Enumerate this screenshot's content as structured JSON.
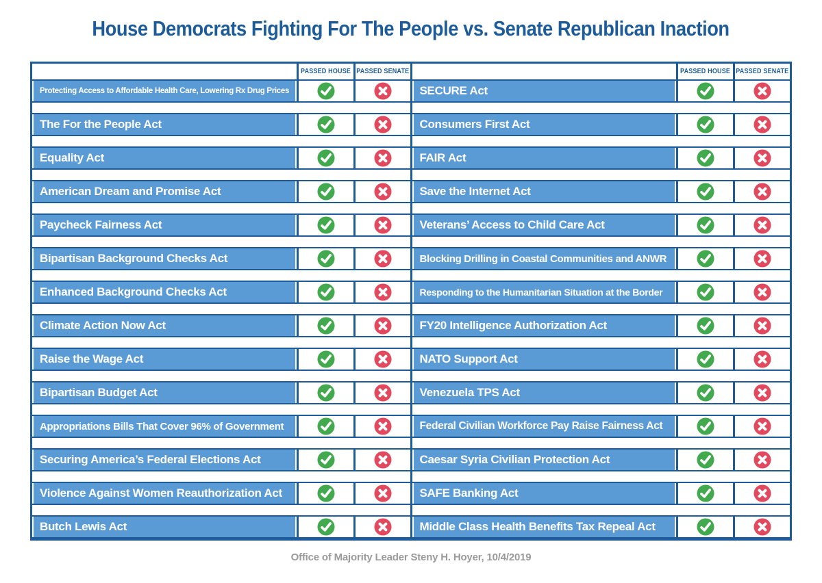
{
  "title": "House Democrats Fighting For The People vs. Senate Republican Inaction",
  "footer": "Office of Majority Leader Steny H. Hoyer, 10/4/2019",
  "columns": {
    "passed_house": "PASSED HOUSE",
    "passed_senate": "PASSED SENATE"
  },
  "colors": {
    "accent_blue": "#1D5C99",
    "bar_blue": "#5B9BD5",
    "pass_green": "#42A94E",
    "fail_red": "#E2495E",
    "footer_gray": "#9A9A9A"
  },
  "icons": {
    "passed": "check-circle-icon",
    "not_passed": "x-circle-icon"
  },
  "chart_data": {
    "type": "table",
    "title": "House Democrats Fighting For The People vs. Senate Republican Inaction",
    "columns": [
      "PASSED HOUSE",
      "PASSED SENATE"
    ],
    "left_rows": [
      {
        "bill": "Protecting Access to Affordable Health Care, Lowering Rx Drug Prices",
        "passed_house": true,
        "passed_senate": false
      },
      {
        "bill": "The For the People Act",
        "passed_house": true,
        "passed_senate": false
      },
      {
        "bill": "Equality Act",
        "passed_house": true,
        "passed_senate": false
      },
      {
        "bill": "American Dream and Promise Act",
        "passed_house": true,
        "passed_senate": false
      },
      {
        "bill": "Paycheck Fairness Act",
        "passed_house": true,
        "passed_senate": false
      },
      {
        "bill": "Bipartisan Background Checks Act",
        "passed_house": true,
        "passed_senate": false
      },
      {
        "bill": "Enhanced Background Checks Act",
        "passed_house": true,
        "passed_senate": false
      },
      {
        "bill": "Climate Action Now Act",
        "passed_house": true,
        "passed_senate": false
      },
      {
        "bill": "Raise the Wage Act",
        "passed_house": true,
        "passed_senate": false
      },
      {
        "bill": "Bipartisan Budget Act",
        "passed_house": true,
        "passed_senate": false
      },
      {
        "bill": "Appropriations Bills That Cover 96% of Government",
        "passed_house": true,
        "passed_senate": false
      },
      {
        "bill": "Securing America’s Federal Elections Act",
        "passed_house": true,
        "passed_senate": false
      },
      {
        "bill": "Violence Against Women Reauthorization Act",
        "passed_house": true,
        "passed_senate": false
      },
      {
        "bill": "Butch Lewis Act",
        "passed_house": true,
        "passed_senate": false
      }
    ],
    "right_rows": [
      {
        "bill": "SECURE Act",
        "passed_house": true,
        "passed_senate": false
      },
      {
        "bill": "Consumers First Act",
        "passed_house": true,
        "passed_senate": false
      },
      {
        "bill": "FAIR Act",
        "passed_house": true,
        "passed_senate": false
      },
      {
        "bill": "Save the Internet Act",
        "passed_house": true,
        "passed_senate": false
      },
      {
        "bill": "Veterans’ Access to Child Care Act",
        "passed_house": true,
        "passed_senate": false
      },
      {
        "bill": "Blocking Drilling in Coastal Communities and ANWR",
        "passed_house": true,
        "passed_senate": false
      },
      {
        "bill": "Responding to the Humanitarian Situation at the Border",
        "passed_house": true,
        "passed_senate": false
      },
      {
        "bill": "FY20 Intelligence Authorization Act",
        "passed_house": true,
        "passed_senate": false
      },
      {
        "bill": "NATO Support Act",
        "passed_house": true,
        "passed_senate": false
      },
      {
        "bill": "Venezuela TPS Act",
        "passed_house": true,
        "passed_senate": false
      },
      {
        "bill": "Federal Civilian Workforce Pay Raise Fairness Act",
        "passed_house": true,
        "passed_senate": false
      },
      {
        "bill": "Caesar Syria Civilian Protection Act",
        "passed_house": true,
        "passed_senate": false
      },
      {
        "bill": "SAFE Banking Act",
        "passed_house": true,
        "passed_senate": false
      },
      {
        "bill": "Middle Class Health Benefits Tax Repeal Act",
        "passed_house": true,
        "passed_senate": false
      }
    ]
  }
}
